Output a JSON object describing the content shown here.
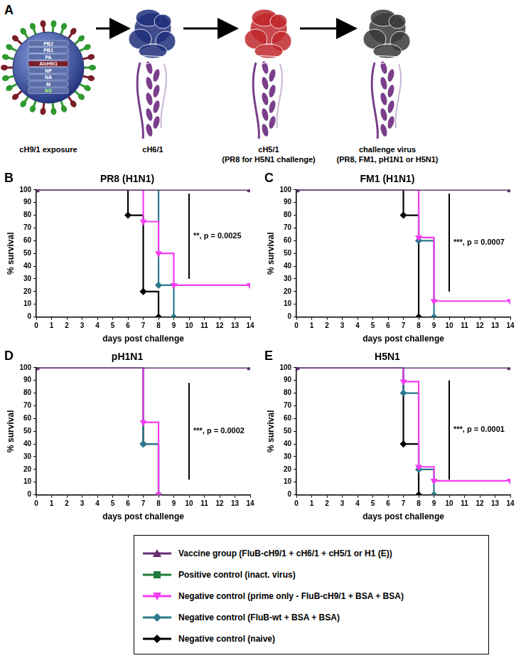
{
  "panel_a": {
    "label": "A",
    "virus_segments": [
      "PB2",
      "PB1",
      "PA",
      "A/cH9/1",
      "NP",
      "NA",
      "M",
      "NS"
    ],
    "captions": [
      [
        "cH9/1 exposure"
      ],
      [
        "cH6/1"
      ],
      [
        "cH5/1",
        "(PR8 for H5N1 challenge)"
      ],
      [
        "challenge virus",
        "(PR8, FM1, pH1N1 or H5N1)"
      ]
    ]
  },
  "chart_data": [
    {
      "type": "line",
      "panel": "B",
      "title": "PR8 (H1N1)",
      "x_label": "days post challenge",
      "y_label": "% survival",
      "xlim": [
        0,
        14
      ],
      "xticks": [
        0,
        1,
        2,
        3,
        4,
        5,
        6,
        7,
        8,
        9,
        10,
        11,
        12,
        13,
        14
      ],
      "ylim": [
        0,
        100
      ],
      "yticks": [
        0,
        10,
        20,
        30,
        40,
        50,
        60,
        70,
        80,
        90,
        100
      ],
      "grid": false,
      "line_style": "step",
      "annotation": {
        "text": "**, p = 0.0025",
        "x": 10,
        "y": [
          30,
          97
        ]
      },
      "series": [
        {
          "name": "Vaccine group (FluB-cH9/1 + cH6/1 + cH5/1 or H1 (E))",
          "color": "#662d73",
          "marker": "triangle",
          "x": [
            0,
            14
          ],
          "values": [
            100,
            100
          ]
        },
        {
          "name": "Positive control (inact. virus)",
          "color": "#1e7b3a",
          "marker": "square",
          "x": [
            0,
            14
          ],
          "values": [
            100,
            100
          ]
        },
        {
          "name": "Negative control (prime only - FluB-cH9/1 + BSA + BSA)",
          "color": "#f23cf0",
          "marker": "triangle-down",
          "x": [
            0,
            7,
            8,
            9,
            14
          ],
          "values": [
            100,
            75,
            50,
            25,
            25
          ]
        },
        {
          "name": "Negative control (FluB-wt + BSA + BSA)",
          "color": "#2a7a8c",
          "marker": "diamond",
          "x": [
            0,
            8,
            9
          ],
          "values": [
            100,
            25,
            0
          ]
        },
        {
          "name": "Negative control (naive)",
          "color": "#000000",
          "marker": "diamond",
          "x": [
            0,
            6,
            7,
            8
          ],
          "values": [
            100,
            80,
            20,
            0
          ]
        }
      ]
    },
    {
      "type": "line",
      "panel": "C",
      "title": "FM1 (H1N1)",
      "x_label": "days post challenge",
      "y_label": "% survival",
      "xlim": [
        0,
        14
      ],
      "xticks": [
        0,
        1,
        2,
        3,
        4,
        5,
        6,
        7,
        8,
        9,
        10,
        11,
        12,
        13,
        14
      ],
      "ylim": [
        0,
        100
      ],
      "yticks": [
        0,
        10,
        20,
        30,
        40,
        50,
        60,
        70,
        80,
        90,
        100
      ],
      "grid": false,
      "line_style": "step",
      "annotation": {
        "text": "***, p = 0.0007",
        "x": 10,
        "y": [
          20,
          97
        ]
      },
      "series": [
        {
          "name": "Vaccine group (FluB-cH9/1 + cH6/1 + cH5/1 or H1 (E))",
          "color": "#662d73",
          "marker": "triangle",
          "x": [
            0,
            14
          ],
          "values": [
            100,
            100
          ]
        },
        {
          "name": "Positive control (inact. virus)",
          "color": "#1e7b3a",
          "marker": "square",
          "x": [
            0,
            14
          ],
          "values": [
            100,
            100
          ]
        },
        {
          "name": "Negative control (prime only - FluB-cH9/1 + BSA + BSA)",
          "color": "#f23cf0",
          "marker": "triangle-down",
          "x": [
            0,
            8,
            9,
            14
          ],
          "values": [
            100,
            62.5,
            12.5,
            12.5
          ]
        },
        {
          "name": "Negative control (FluB-wt + BSA + BSA)",
          "color": "#2a7a8c",
          "marker": "diamond",
          "x": [
            0,
            8,
            9
          ],
          "values": [
            100,
            60,
            0
          ]
        },
        {
          "name": "Negative control (naive)",
          "color": "#000000",
          "marker": "diamond",
          "x": [
            0,
            7,
            8
          ],
          "values": [
            100,
            80,
            0
          ]
        }
      ]
    },
    {
      "type": "line",
      "panel": "D",
      "title": "pH1N1",
      "x_label": "days post challenge",
      "y_label": "% survival",
      "xlim": [
        0,
        14
      ],
      "xticks": [
        0,
        1,
        2,
        3,
        4,
        5,
        6,
        7,
        8,
        9,
        10,
        11,
        12,
        13,
        14
      ],
      "ylim": [
        0,
        100
      ],
      "yticks": [
        0,
        10,
        20,
        30,
        40,
        50,
        60,
        70,
        80,
        90,
        100
      ],
      "grid": false,
      "line_style": "step",
      "annotation": {
        "text": "***, p = 0.0002",
        "x": 10,
        "y": [
          12,
          88
        ]
      },
      "series": [
        {
          "name": "Vaccine group (FluB-cH9/1 + cH6/1 + cH5/1 or H1 (E))",
          "color": "#662d73",
          "marker": "triangle",
          "x": [
            0,
            14
          ],
          "values": [
            100,
            100
          ]
        },
        {
          "name": "Positive control (inact. virus)",
          "color": "#1e7b3a",
          "marker": "square",
          "x": [
            0,
            14
          ],
          "values": [
            100,
            100
          ]
        },
        {
          "name": "Negative control (prime only - FluB-cH9/1 + BSA + BSA)",
          "color": "#f23cf0",
          "marker": "triangle-down",
          "x": [
            0,
            7,
            8
          ],
          "values": [
            100,
            57,
            0
          ]
        },
        {
          "name": "Negative control (FluB-wt + BSA + BSA)",
          "color": "#2a7a8c",
          "marker": "diamond",
          "x": [
            0,
            7,
            8
          ],
          "values": [
            100,
            40,
            0
          ]
        },
        {
          "name": "Negative control (naive)",
          "color": "#000000",
          "marker": "diamond",
          "x": [
            0,
            7,
            8
          ],
          "values": [
            100,
            40,
            0
          ]
        }
      ]
    },
    {
      "type": "line",
      "panel": "E",
      "title": "H5N1",
      "x_label": "days post challenge",
      "y_label": "% survival",
      "xlim": [
        0,
        14
      ],
      "xticks": [
        0,
        1,
        2,
        3,
        4,
        5,
        6,
        7,
        8,
        9,
        10,
        11,
        12,
        13,
        14
      ],
      "ylim": [
        0,
        100
      ],
      "yticks": [
        0,
        10,
        20,
        30,
        40,
        50,
        60,
        70,
        80,
        90,
        100
      ],
      "grid": false,
      "line_style": "step",
      "annotation": {
        "text": "***, p = 0.0001",
        "x": 10,
        "y": [
          12,
          90
        ]
      },
      "series": [
        {
          "name": "Vaccine group (FluB-cH9/1 + cH6/1 + cH5/1 or H1 (E))",
          "color": "#662d73",
          "marker": "triangle",
          "x": [
            0,
            14
          ],
          "values": [
            100,
            100
          ]
        },
        {
          "name": "Positive control (inact. virus)",
          "color": "#1e7b3a",
          "marker": "square",
          "x": [
            0,
            14
          ],
          "values": [
            100,
            100
          ]
        },
        {
          "name": "Negative control (prime only - FluB-cH9/1 + BSA + BSA)",
          "color": "#f23cf0",
          "marker": "triangle-down",
          "x": [
            0,
            7,
            8,
            9,
            14
          ],
          "values": [
            100,
            89,
            22,
            11,
            11
          ]
        },
        {
          "name": "Negative control (FluB-wt + BSA + BSA)",
          "color": "#2a7a8c",
          "marker": "diamond",
          "x": [
            0,
            7,
            8,
            9
          ],
          "values": [
            100,
            80,
            20,
            0
          ]
        },
        {
          "name": "Negative control (naive)",
          "color": "#000000",
          "marker": "diamond",
          "x": [
            0,
            7,
            8
          ],
          "values": [
            100,
            40,
            0
          ]
        }
      ]
    }
  ]
}
